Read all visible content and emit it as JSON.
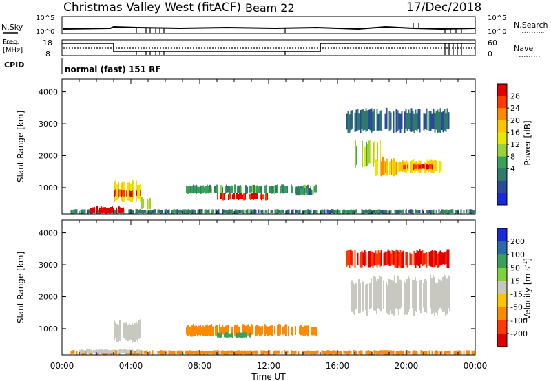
{
  "header": {
    "station": "Christmas Valley West (fitACF)",
    "beam": "Beam 22",
    "date": "17/Dec/2018"
  },
  "noise_panel": {
    "left_label": "N.Sky",
    "left_ticks": [
      "10^5",
      "10^0"
    ],
    "right_label": "N.Search",
    "right_ticks": [
      "10^5",
      "10^0"
    ]
  },
  "freq_panel": {
    "left_label_line1": "Freq.",
    "left_label_line2": "[MHz]",
    "left_ticks": [
      "18",
      "8"
    ],
    "right_label": "Nave",
    "right_ticks": [
      "60",
      "0"
    ]
  },
  "cpid": {
    "label": "CPID",
    "value": "normal (fast) 151 RF"
  },
  "axes": {
    "ylabel": "Slant Range [km]",
    "xlabel": "Time UT",
    "y_ticks": [
      "4000",
      "3000",
      "2000",
      "1000"
    ],
    "x_ticks": [
      "00:00",
      "04:00",
      "08:00",
      "12:00",
      "16:00",
      "20:00",
      "00:00"
    ]
  },
  "power_colorbar": {
    "label": "Power [dB]",
    "ticks": [
      "28",
      "24",
      "20",
      "16",
      "12",
      "8",
      "4"
    ],
    "colors": [
      "#e00000",
      "#ff3a00",
      "#ff8a00",
      "#ffc400",
      "#e8e800",
      "#9ad23a",
      "#3aa05a",
      "#2f7a6a",
      "#2a4a9a",
      "#1a2ad8"
    ]
  },
  "velocity_colorbar": {
    "label": "Velocity [m s",
    "label_sup": "-1",
    "label_end": "]",
    "ticks": [
      "200",
      "100",
      "50",
      "15",
      "-15",
      "-50",
      "-100",
      "-200"
    ],
    "colors": [
      "#1a2ad8",
      "#2a6aa8",
      "#3aa05a",
      "#7fd23a",
      "#c8c8c0",
      "#ffc400",
      "#ff8a00",
      "#ff3a00",
      "#e00000"
    ]
  },
  "chart_data": [
    {
      "type": "heatmap",
      "name": "power",
      "xlabel": "Time UT",
      "ylabel": "Slant Range [km]",
      "xlim": [
        0,
        24
      ],
      "ylim": [
        180,
        4400
      ],
      "clabel": "Power [dB]",
      "regions": [
        {
          "t": [
            0.5,
            24
          ],
          "r": [
            180,
            330
          ],
          "value": 8
        },
        {
          "t": [
            1.6,
            3.6
          ],
          "r": [
            200,
            420
          ],
          "value": 30
        },
        {
          "t": [
            3.0,
            4.6
          ],
          "r": [
            550,
            1250
          ],
          "value": 18
        },
        {
          "t": [
            3.0,
            4.6
          ],
          "r": [
            700,
            950
          ],
          "value": 26
        },
        {
          "t": [
            4.6,
            5.2
          ],
          "r": [
            300,
            700
          ],
          "value": 14
        },
        {
          "t": [
            7.2,
            14.8
          ],
          "r": [
            800,
            1100
          ],
          "value": 10
        },
        {
          "t": [
            9.0,
            12.0
          ],
          "r": [
            600,
            850
          ],
          "value": 28
        },
        {
          "t": [
            13.5,
            14.5
          ],
          "r": [
            750,
            1000
          ],
          "value": 8
        },
        {
          "t": [
            17.0,
            18.5
          ],
          "r": [
            1600,
            2500
          ],
          "value": 14
        },
        {
          "t": [
            18.2,
            19.5
          ],
          "r": [
            1350,
            1950
          ],
          "value": 20
        },
        {
          "t": [
            19.5,
            22.0
          ],
          "r": [
            1450,
            1900
          ],
          "value": 18
        },
        {
          "t": [
            19.8,
            21.5
          ],
          "r": [
            1550,
            1750
          ],
          "value": 26
        },
        {
          "t": [
            16.5,
            22.5
          ],
          "r": [
            2700,
            3500
          ],
          "value": 6
        }
      ]
    },
    {
      "type": "heatmap",
      "name": "velocity",
      "xlabel": "Time UT",
      "ylabel": "Slant Range [km]",
      "xlim": [
        0,
        24
      ],
      "ylim": [
        180,
        4400
      ],
      "clabel": "Velocity [m s-1]",
      "regions": [
        {
          "t": [
            0.5,
            24
          ],
          "r": [
            180,
            330
          ],
          "value": -40
        },
        {
          "t": [
            1.0,
            4.6
          ],
          "r": [
            220,
            360
          ],
          "value": 0
        },
        {
          "t": [
            3.0,
            4.6
          ],
          "r": [
            550,
            1300
          ],
          "value": 0
        },
        {
          "t": [
            7.2,
            14.8
          ],
          "r": [
            750,
            1150
          ],
          "value": -60
        },
        {
          "t": [
            9.0,
            11.0
          ],
          "r": [
            700,
            900
          ],
          "value": 40
        },
        {
          "t": [
            16.8,
            22.5
          ],
          "r": [
            1400,
            2700
          ],
          "value": 0
        },
        {
          "t": [
            16.5,
            22.5
          ],
          "r": [
            2900,
            3500
          ],
          "value": -150
        }
      ]
    }
  ]
}
